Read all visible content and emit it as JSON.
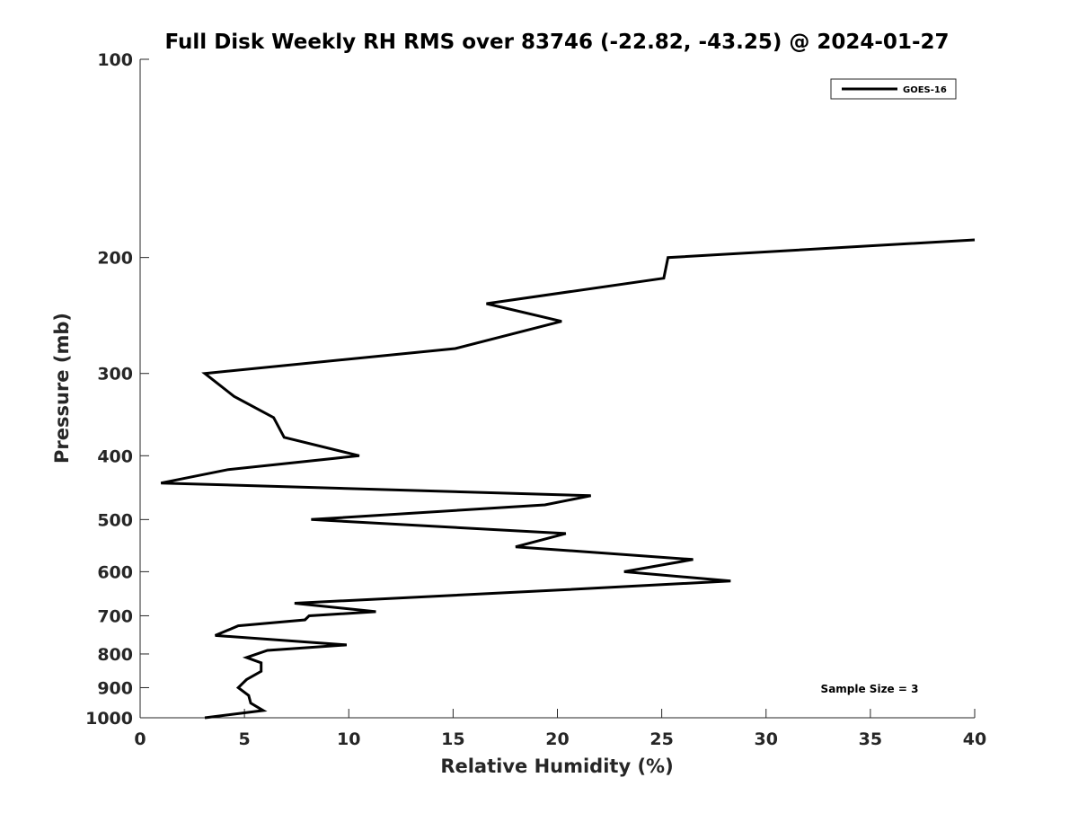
{
  "chart_data": {
    "type": "line",
    "title": "Full Disk Weekly RH RMS over 83746 (-22.82, -43.25) @ 2024-01-27",
    "xlabel": "Relative Humidity (%)",
    "ylabel": "Pressure (mb)",
    "xlim": [
      0,
      40
    ],
    "ylim": [
      1000,
      100
    ],
    "y_scale": "log",
    "y_reversed": true,
    "xticks": [
      0,
      5,
      10,
      15,
      20,
      25,
      30,
      35,
      40
    ],
    "xtick_labels": [
      "0",
      "5",
      "10",
      "15",
      "20",
      "25",
      "30",
      "35",
      "40"
    ],
    "yticks": [
      100,
      200,
      300,
      400,
      500,
      600,
      700,
      800,
      900,
      1000
    ],
    "ytick_labels": [
      "100",
      "200",
      "300",
      "400",
      "500",
      "600",
      "700",
      "800",
      "900",
      "1000"
    ],
    "grid": false,
    "legend_position": "top-right",
    "line_color": "#000000",
    "series": [
      {
        "name": "GOES-16",
        "x": [
          3.1,
          5.9,
          5.3,
          5.2,
          4.7,
          5.1,
          5.8,
          5.8,
          5.1,
          6.1,
          9.9,
          3.6,
          4.7,
          7.9,
          8.1,
          11.3,
          7.4,
          20.0,
          28.3,
          23.2,
          26.5,
          18.0,
          20.4,
          8.2,
          19.4,
          21.6,
          1.0,
          4.2,
          10.5,
          6.9,
          6.4,
          4.5,
          3.1,
          15.1,
          20.2,
          16.6,
          25.1,
          25.3,
          40.0
        ],
        "y": [
          1000,
          975,
          950,
          925,
          900,
          875,
          850,
          825,
          810,
          790,
          775,
          750,
          725,
          710,
          700,
          690,
          670,
          640,
          620,
          600,
          575,
          550,
          525,
          500,
          475,
          460,
          440,
          420,
          400,
          375,
          350,
          325,
          300,
          275,
          250,
          235,
          215,
          200,
          188
        ]
      }
    ],
    "annotations": [
      "Sample Size = 3"
    ]
  }
}
